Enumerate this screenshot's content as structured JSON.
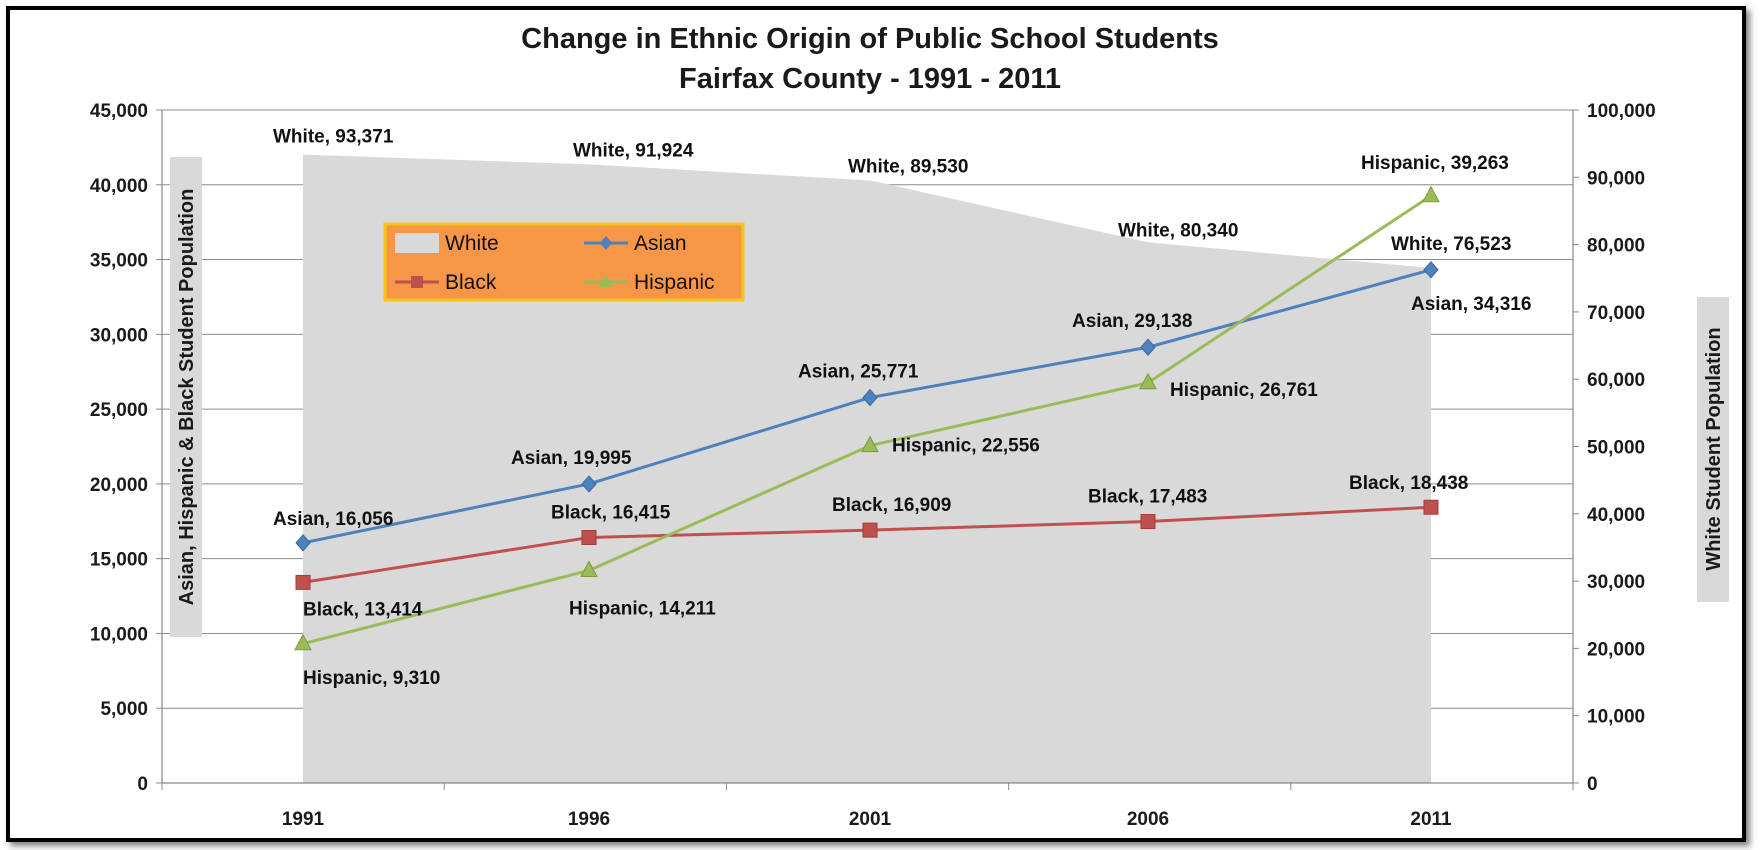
{
  "chart_data": {
    "type": "line",
    "title": "Change in Ethnic Origin of Public School Students",
    "subtitle": "Fairfax County - 1991 - 2011",
    "categories": [
      "1991",
      "1996",
      "2001",
      "2006",
      "2011"
    ],
    "y_left_label": "Asian, Hispanic & Black Student Population",
    "y_right_label": "White  Student Population",
    "y_left_range": [
      0,
      45000
    ],
    "y_right_range": [
      0,
      100000
    ],
    "y_left_ticks": [
      "0",
      "5,000",
      "10,000",
      "15,000",
      "20,000",
      "25,000",
      "30,000",
      "35,000",
      "40,000",
      "45,000"
    ],
    "y_right_ticks": [
      "0",
      "10,000",
      "20,000",
      "30,000",
      "40,000",
      "50,000",
      "60,000",
      "70,000",
      "80,000",
      "90,000",
      "100,000"
    ],
    "grid": "horizontal",
    "legend_position": "top-left",
    "series": [
      {
        "name": "White",
        "type": "area",
        "axis": "right",
        "color": "#d9d9d9",
        "values": [
          93371,
          91924,
          89530,
          80340,
          76523
        ],
        "labels": [
          "White, 93,371",
          "White, 91,924",
          "White, 89,530",
          "White, 80,340",
          "White, 76,523"
        ]
      },
      {
        "name": "Asian",
        "type": "line",
        "axis": "left",
        "color": "#4f81bd",
        "marker": "diamond",
        "values": [
          16056,
          19995,
          25771,
          29138,
          34316
        ],
        "labels": [
          "Asian, 16,056",
          "Asian, 19,995",
          "Asian, 25,771",
          "Asian, 29,138",
          "Asian, 34,316"
        ]
      },
      {
        "name": "Black",
        "type": "line",
        "axis": "left",
        "color": "#c0504d",
        "marker": "square",
        "values": [
          13414,
          16415,
          16909,
          17483,
          18438
        ],
        "labels": [
          "Black, 13,414",
          "Black, 16,415",
          "Black, 16,909",
          "Black, 17,483",
          "Black, 18,438"
        ]
      },
      {
        "name": "Hispanic",
        "type": "line",
        "axis": "left",
        "color": "#9bbb59",
        "marker": "triangle",
        "values": [
          9310,
          14211,
          22556,
          26761,
          39263
        ],
        "labels": [
          "Hispanic, 9,310",
          "Hispanic, 14,211",
          "Hispanic, 22,556",
          "Hispanic, 26,761",
          "Hispanic, 39,263"
        ]
      }
    ],
    "legend": {
      "background": "#f79646",
      "border": "#f5c518",
      "items": [
        "White",
        "Asian",
        "Black",
        "Hispanic"
      ]
    }
  }
}
